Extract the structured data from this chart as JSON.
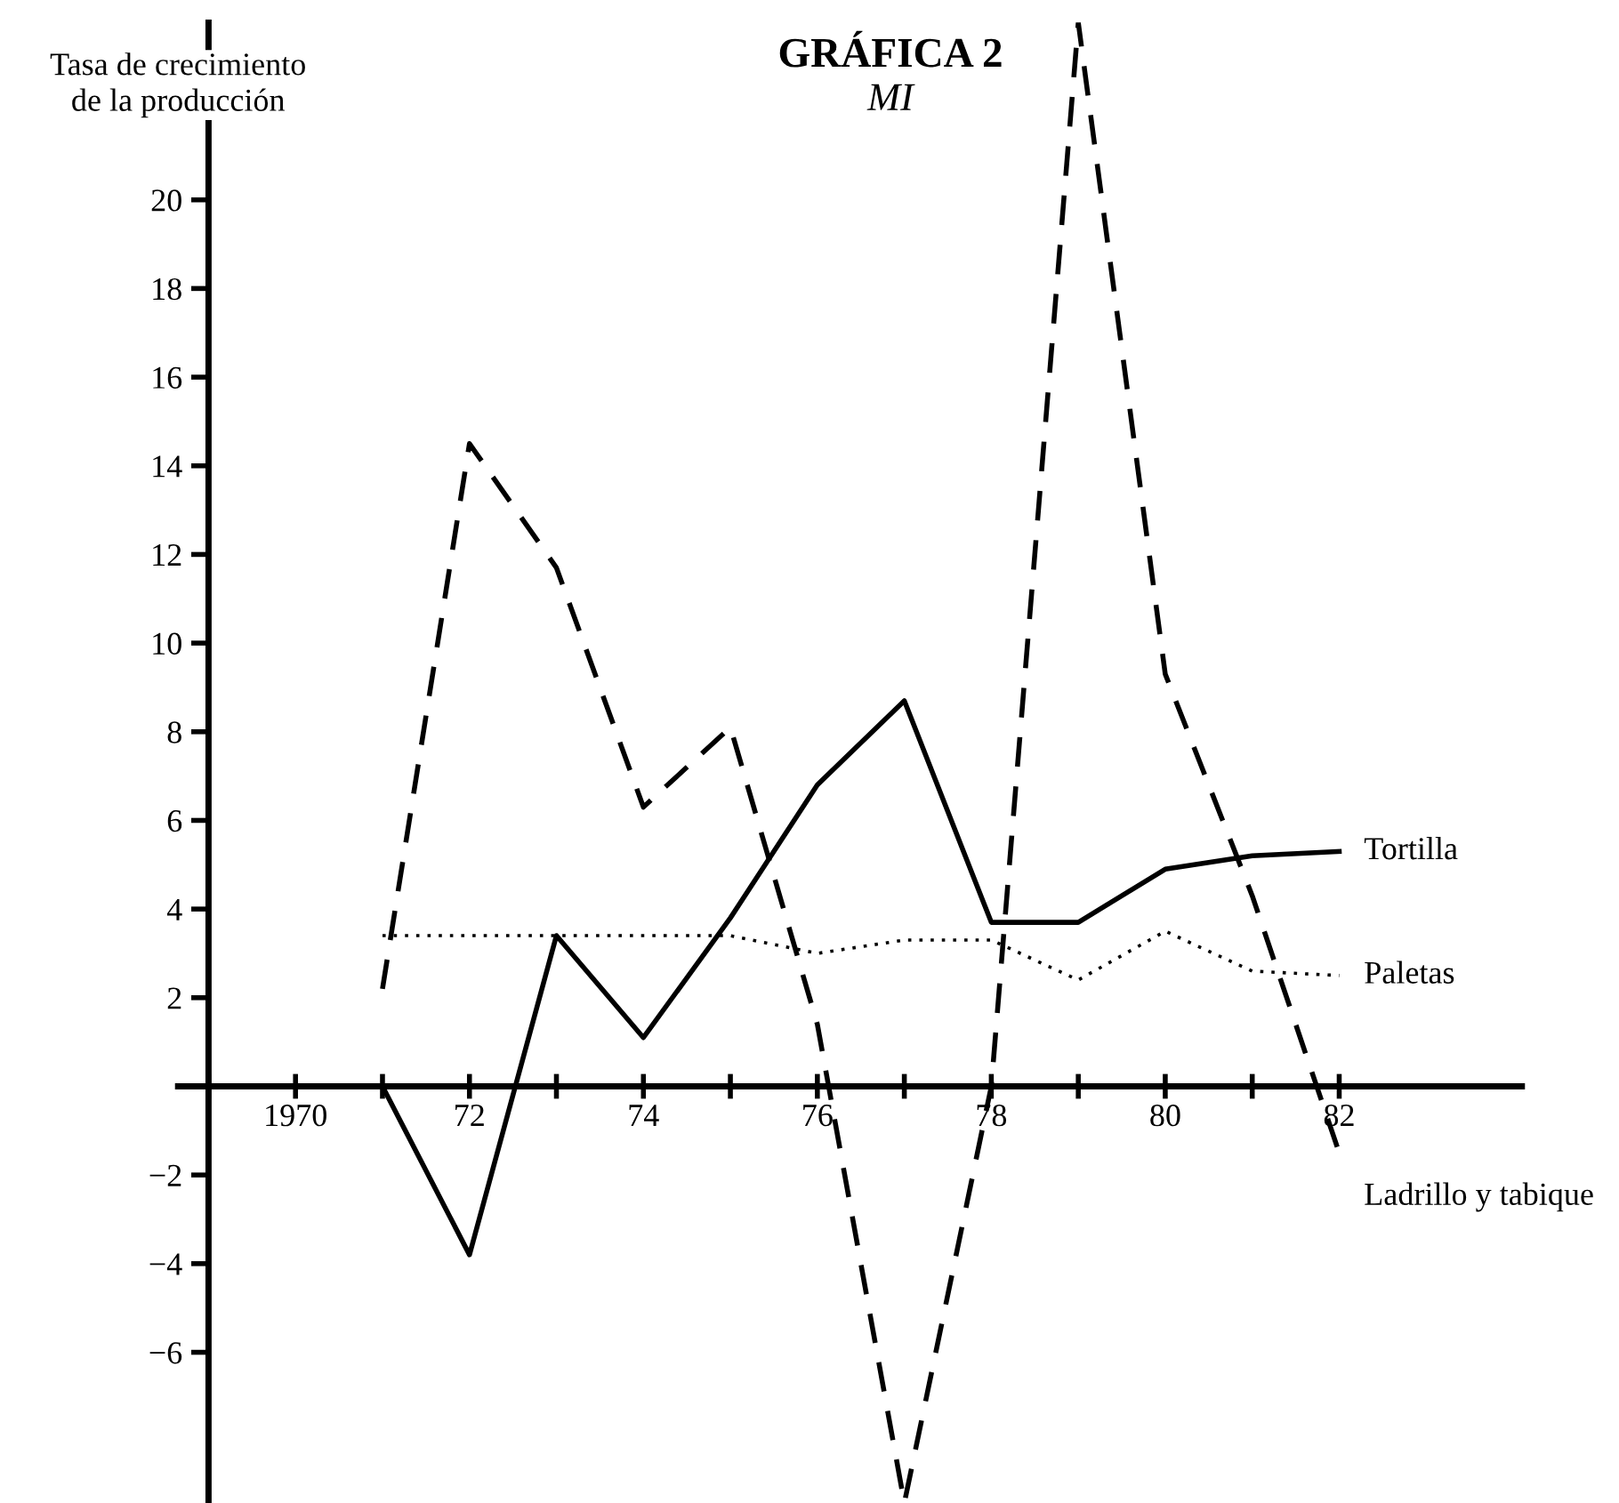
{
  "chart_data": {
    "type": "line",
    "title": "GRÁFICA 2",
    "subtitle": "MI",
    "ylabel": "Tasa de crecimiento\nde la producción",
    "x": [
      1971,
      1972,
      1973,
      1974,
      1975,
      1976,
      1977,
      1978,
      1979,
      1980,
      1981,
      1982
    ],
    "series": [
      {
        "name": "Tortilla",
        "color": "#000000",
        "line_style": "solid",
        "values": [
          0,
          -3.8,
          3.4,
          1.1,
          3.8,
          6.8,
          8.7,
          3.7,
          3.7,
          4.9,
          5.2,
          5.3
        ]
      },
      {
        "name": "Paletas",
        "color": "#000000",
        "line_style": "dotted",
        "values": [
          3.4,
          3.4,
          3.4,
          3.4,
          3.4,
          3.0,
          3.3,
          3.3,
          2.4,
          3.5,
          2.6,
          2.5
        ]
      },
      {
        "name": "Ladrillo y tabique",
        "color": "#000000",
        "line_style": "dashed",
        "values": [
          2.2,
          14.5,
          11.7,
          6.3,
          8.1,
          1.4,
          -9.4,
          0,
          24,
          9.3,
          4.3,
          -1.5
        ]
      }
    ],
    "xlim": [
      1968.65,
      1984.1
    ],
    "ylim": [
      -9.4,
      24
    ],
    "xticks": [
      {
        "value": 1969,
        "label": null
      },
      1970,
      {
        "value": 1971,
        "label": null
      },
      {
        "value": 1972,
        "label": "72"
      },
      {
        "value": 1973,
        "label": null
      },
      {
        "value": 1974,
        "label": "74"
      },
      {
        "value": 1975,
        "label": null
      },
      {
        "value": 1976,
        "label": "76"
      },
      {
        "value": 1977,
        "label": null
      },
      {
        "value": 1978,
        "label": "78"
      },
      {
        "value": 1979,
        "label": null
      },
      {
        "value": 1980,
        "label": "80"
      },
      {
        "value": 1981,
        "label": null
      },
      {
        "value": 1982,
        "label": "82"
      }
    ],
    "yticks": [
      20,
      18,
      16,
      14,
      12,
      10,
      8,
      6,
      4,
      2,
      {
        "value": -2,
        "label": "−2"
      },
      {
        "value": -4,
        "label": "−4"
      },
      {
        "value": -6,
        "label": "−6"
      }
    ],
    "grid": false,
    "legend": false,
    "marker": "none"
  }
}
